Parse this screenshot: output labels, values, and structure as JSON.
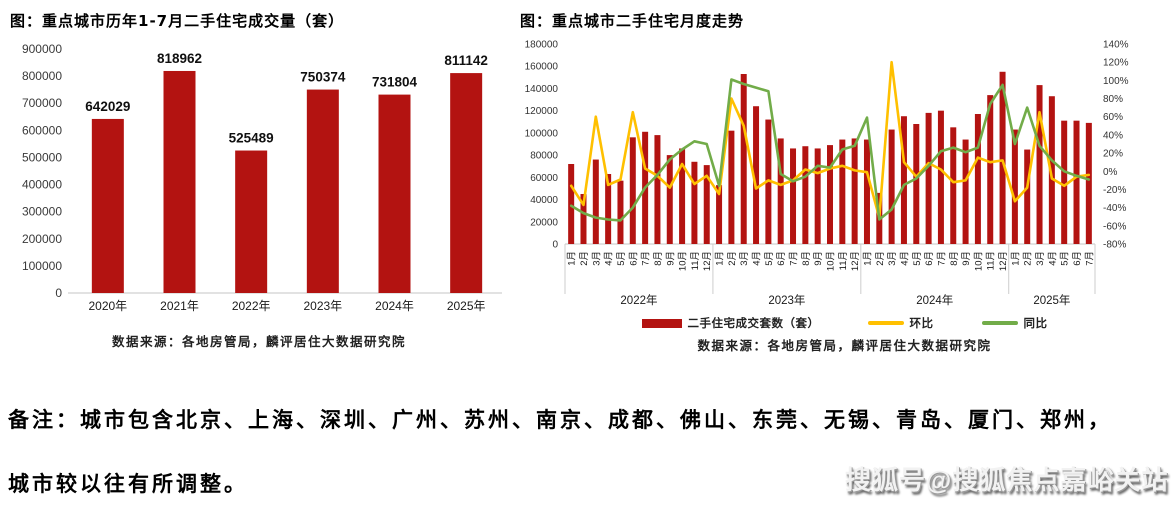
{
  "colors": {
    "bar_red": "#B31311",
    "line_yellow": "#FFC000",
    "line_green": "#72AC49",
    "axis_line": "#c6c6c6",
    "axis_text": "#333333"
  },
  "note": {
    "line1": "备注：城市包含北京、上海、深圳、广州、苏州、南京、成都、佛山、东莞、无锡、青岛、厦门、郑州，",
    "line2": "城市较以往有所调整。"
  },
  "watermark": {
    "text": "搜狐号@搜狐焦点嘉峪关站"
  },
  "chart_data": [
    {
      "type": "bar",
      "title": "图：重点城市历年1-7月二手住宅成交量（套）",
      "source": "数据来源：各地房管局，麟评居住大数据研究院",
      "categories": [
        "2020年",
        "2021年",
        "2022年",
        "2023年",
        "2024年",
        "2025年"
      ],
      "values": [
        642029,
        818962,
        525489,
        750374,
        731804,
        811142
      ],
      "bar_color": "#B31311",
      "xlabel": "",
      "ylabel": "",
      "ylim": [
        0,
        900000
      ],
      "ytick_step": 100000,
      "grid": false,
      "data_labels": true
    },
    {
      "type": "bar+line",
      "title": "图：重点城市二手住宅月度走势",
      "source": "数据来源：各地房管局，麟评居住大数据研究院",
      "years": [
        {
          "label": "2022年",
          "months": 12
        },
        {
          "label": "2023年",
          "months": 12
        },
        {
          "label": "2024年",
          "months": 12
        },
        {
          "label": "2025年",
          "months": 7
        }
      ],
      "month_label_suffix": "月",
      "left_axis": {
        "min": 0,
        "max": 180000,
        "step": 20000
      },
      "right_axis": {
        "min": -80,
        "max": 140,
        "step": 20,
        "unit": "%"
      },
      "grid": false,
      "legend_position": "bottom",
      "series": [
        {
          "name": "二手住宅成交套数（套）",
          "type": "bar",
          "axis": "left",
          "color": "#B31311",
          "values": [
            72000,
            45000,
            76000,
            63000,
            57000,
            96000,
            101000,
            98000,
            80000,
            86000,
            74000,
            71000,
            53000,
            102000,
            153000,
            124000,
            112000,
            95000,
            86000,
            88000,
            86000,
            89000,
            94000,
            95000,
            94000,
            46000,
            103000,
            115000,
            108000,
            118000,
            120000,
            105000,
            94000,
            117000,
            134000,
            155000,
            103000,
            85000,
            143000,
            133000,
            111000,
            111000,
            109000
          ]
        },
        {
          "name": "环比",
          "type": "line",
          "axis": "right",
          "color": "#FFC000",
          "values": [
            -16,
            -37,
            60,
            -15,
            -9,
            65,
            3,
            -5,
            -18,
            8,
            -14,
            -5,
            -25,
            80,
            50,
            -19,
            -10,
            -15,
            -10,
            2,
            -2,
            3,
            6,
            1,
            -1,
            -51,
            120,
            10,
            -6,
            9,
            2,
            -12,
            -10,
            15,
            10,
            12,
            -33,
            -18,
            65,
            -8,
            -16,
            -6,
            -4
          ]
        },
        {
          "name": "同比",
          "type": "line",
          "axis": "right",
          "color": "#72AC49",
          "values": [
            -38,
            -46,
            -51,
            -53,
            -54,
            -40,
            -18,
            -4,
            13,
            24,
            33,
            30,
            -16,
            101,
            96,
            92,
            88,
            -3,
            -11,
            -6,
            6,
            4,
            24,
            28,
            59,
            -53,
            -42,
            -15,
            -8,
            6,
            22,
            26,
            21,
            26,
            74,
            95,
            30,
            70,
            28,
            12,
            0,
            -5,
            -9
          ]
        }
      ]
    }
  ]
}
